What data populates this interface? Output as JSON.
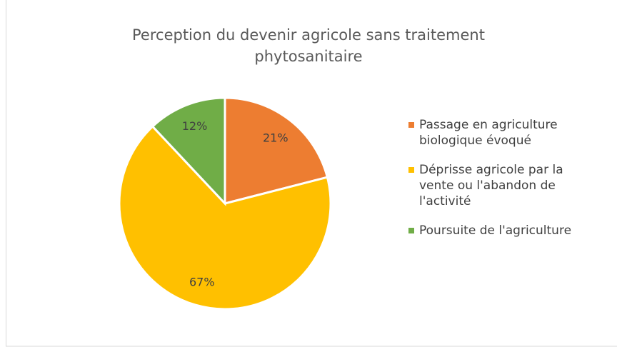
{
  "chart_data": {
    "type": "pie",
    "title": "Perception du devenir agricole sans traitement phytosanitaire",
    "categories": [
      "Passage en agriculture biologique évoqué",
      "Déprisse agricole par la vente ou l'abandon de l'activité",
      "Poursuite de l'agriculture"
    ],
    "values": [
      21,
      67,
      12
    ],
    "value_labels": [
      "21%",
      "67%",
      "12%"
    ],
    "colors": [
      "#ED7D31",
      "#FFC000",
      "#70AD47"
    ],
    "legend": "right"
  }
}
